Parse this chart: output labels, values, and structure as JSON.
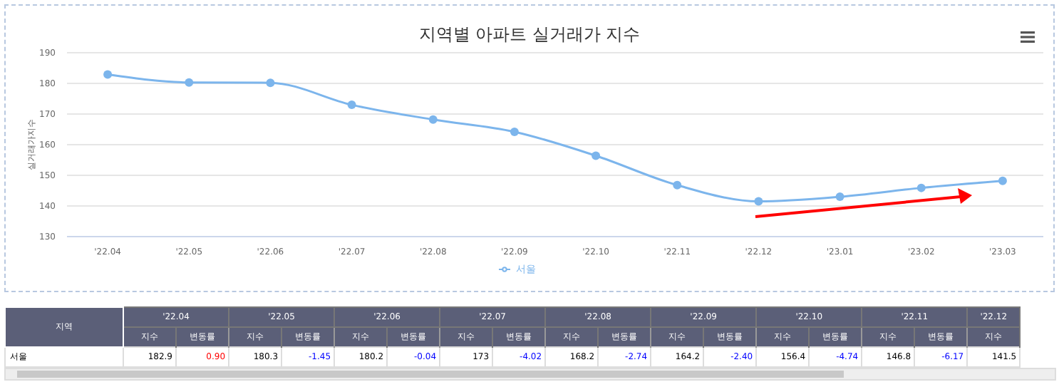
{
  "chart_data": {
    "type": "line",
    "title": "지역별 아파트 실거래가 지수",
    "ylabel": "실거래가지수",
    "categories": [
      "'22.04",
      "'22.05",
      "'22.06",
      "'22.07",
      "'22.08",
      "'22.09",
      "'22.10",
      "'22.11",
      "'22.12",
      "'23.01",
      "'23.02",
      "'23.03"
    ],
    "series": [
      {
        "name": "서울",
        "color": "#7cb5ec",
        "values": [
          182.9,
          180.3,
          180.2,
          173,
          168.2,
          164.2,
          156.4,
          146.8,
          141.5,
          143,
          145.9,
          148.2
        ]
      }
    ],
    "ylim": [
      130,
      190
    ],
    "yticks": [
      130,
      140,
      150,
      160,
      170,
      180,
      190
    ],
    "grid": "y",
    "legend": "bottom",
    "marker": "circle",
    "line_style": "solid",
    "annotations": [
      "지역",
      "지수",
      "변동률",
      "182.9",
      "0.90",
      "180.3",
      "-1.45",
      "180.2",
      "-0.04",
      "173",
      "-4.02",
      "168.2",
      "-2.74",
      "164.2",
      "-2.40",
      "156.4",
      "-4.74",
      "146.8",
      "-6.17",
      "141.5"
    ]
  }
}
